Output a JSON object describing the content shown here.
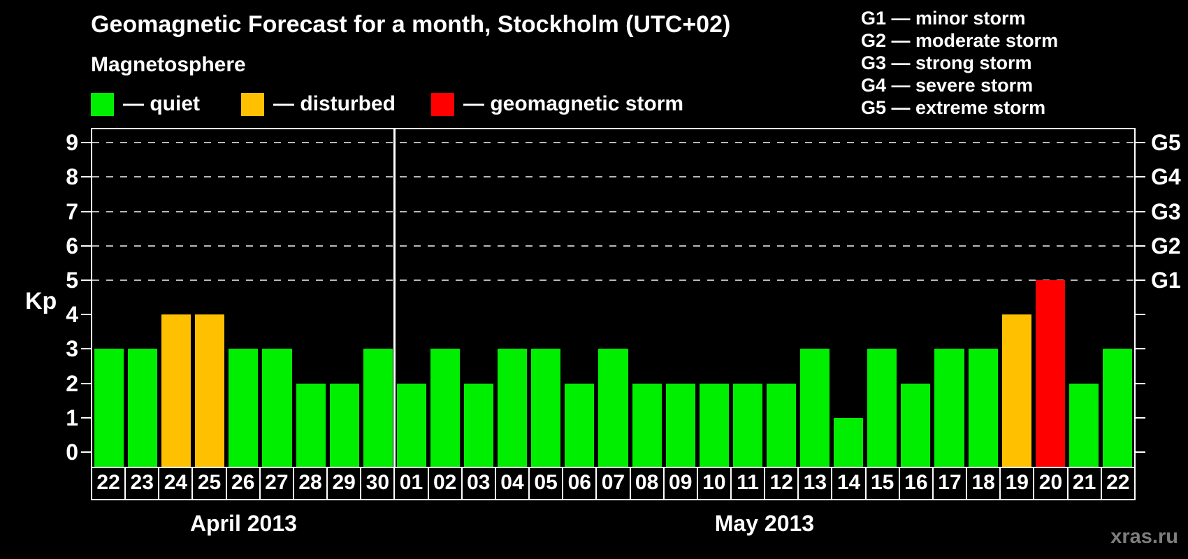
{
  "title": "Geomagnetic Forecast for a month, Stockholm (UTC+02)",
  "subtitle": "Magnetosphere",
  "legend": {
    "items": [
      {
        "name": "quiet",
        "label": "— quiet",
        "color": "#00ee00"
      },
      {
        "name": "disturbed",
        "label": "— disturbed",
        "color": "#ffc000"
      },
      {
        "name": "storm",
        "label": "— geomagnetic storm",
        "color": "#ff0000"
      }
    ]
  },
  "g_scale": [
    "G1 — minor storm",
    "G2 — moderate storm",
    "G3 — strong storm",
    "G4 — severe storm",
    "G5 — extreme storm"
  ],
  "watermark": "xras.ru",
  "chart_data": {
    "type": "bar",
    "ylabel": "Kp",
    "ylim": [
      0,
      9
    ],
    "y_ticks": [
      0,
      1,
      2,
      3,
      4,
      5,
      6,
      7,
      8,
      9
    ],
    "gridlines_at_kp": [
      5,
      6,
      7,
      8,
      9
    ],
    "grid": "dashed horizontal lines at Kp 5 through 9",
    "legend_position": "top",
    "right_axis": [
      {
        "kp": 5,
        "label": "G1"
      },
      {
        "kp": 6,
        "label": "G2"
      },
      {
        "kp": 7,
        "label": "G3"
      },
      {
        "kp": 8,
        "label": "G4"
      },
      {
        "kp": 9,
        "label": "G5"
      }
    ],
    "status_colors": {
      "quiet": "#00ee00",
      "disturbed": "#ffc000",
      "storm": "#ff0000"
    },
    "months": [
      {
        "label": "April 2013",
        "days": [
          {
            "day": "22",
            "kp": 3,
            "status": "quiet"
          },
          {
            "day": "23",
            "kp": 3,
            "status": "quiet"
          },
          {
            "day": "24",
            "kp": 4,
            "status": "disturbed"
          },
          {
            "day": "25",
            "kp": 4,
            "status": "disturbed"
          },
          {
            "day": "26",
            "kp": 3,
            "status": "quiet"
          },
          {
            "day": "27",
            "kp": 3,
            "status": "quiet"
          },
          {
            "day": "28",
            "kp": 2,
            "status": "quiet"
          },
          {
            "day": "29",
            "kp": 2,
            "status": "quiet"
          },
          {
            "day": "30",
            "kp": 3,
            "status": "quiet"
          }
        ]
      },
      {
        "label": "May 2013",
        "days": [
          {
            "day": "01",
            "kp": 2,
            "status": "quiet"
          },
          {
            "day": "02",
            "kp": 3,
            "status": "quiet"
          },
          {
            "day": "03",
            "kp": 2,
            "status": "quiet"
          },
          {
            "day": "04",
            "kp": 3,
            "status": "quiet"
          },
          {
            "day": "05",
            "kp": 3,
            "status": "quiet"
          },
          {
            "day": "06",
            "kp": 2,
            "status": "quiet"
          },
          {
            "day": "07",
            "kp": 3,
            "status": "quiet"
          },
          {
            "day": "08",
            "kp": 2,
            "status": "quiet"
          },
          {
            "day": "09",
            "kp": 2,
            "status": "quiet"
          },
          {
            "day": "10",
            "kp": 2,
            "status": "quiet"
          },
          {
            "day": "11",
            "kp": 2,
            "status": "quiet"
          },
          {
            "day": "12",
            "kp": 2,
            "status": "quiet"
          },
          {
            "day": "13",
            "kp": 3,
            "status": "quiet"
          },
          {
            "day": "14",
            "kp": 1,
            "status": "quiet"
          },
          {
            "day": "15",
            "kp": 3,
            "status": "quiet"
          },
          {
            "day": "16",
            "kp": 2,
            "status": "quiet"
          },
          {
            "day": "17",
            "kp": 3,
            "status": "quiet"
          },
          {
            "day": "18",
            "kp": 3,
            "status": "quiet"
          },
          {
            "day": "19",
            "kp": 4,
            "status": "disturbed"
          },
          {
            "day": "20",
            "kp": 5,
            "status": "storm"
          },
          {
            "day": "21",
            "kp": 2,
            "status": "quiet"
          },
          {
            "day": "22",
            "kp": 3,
            "status": "quiet"
          }
        ]
      }
    ]
  }
}
